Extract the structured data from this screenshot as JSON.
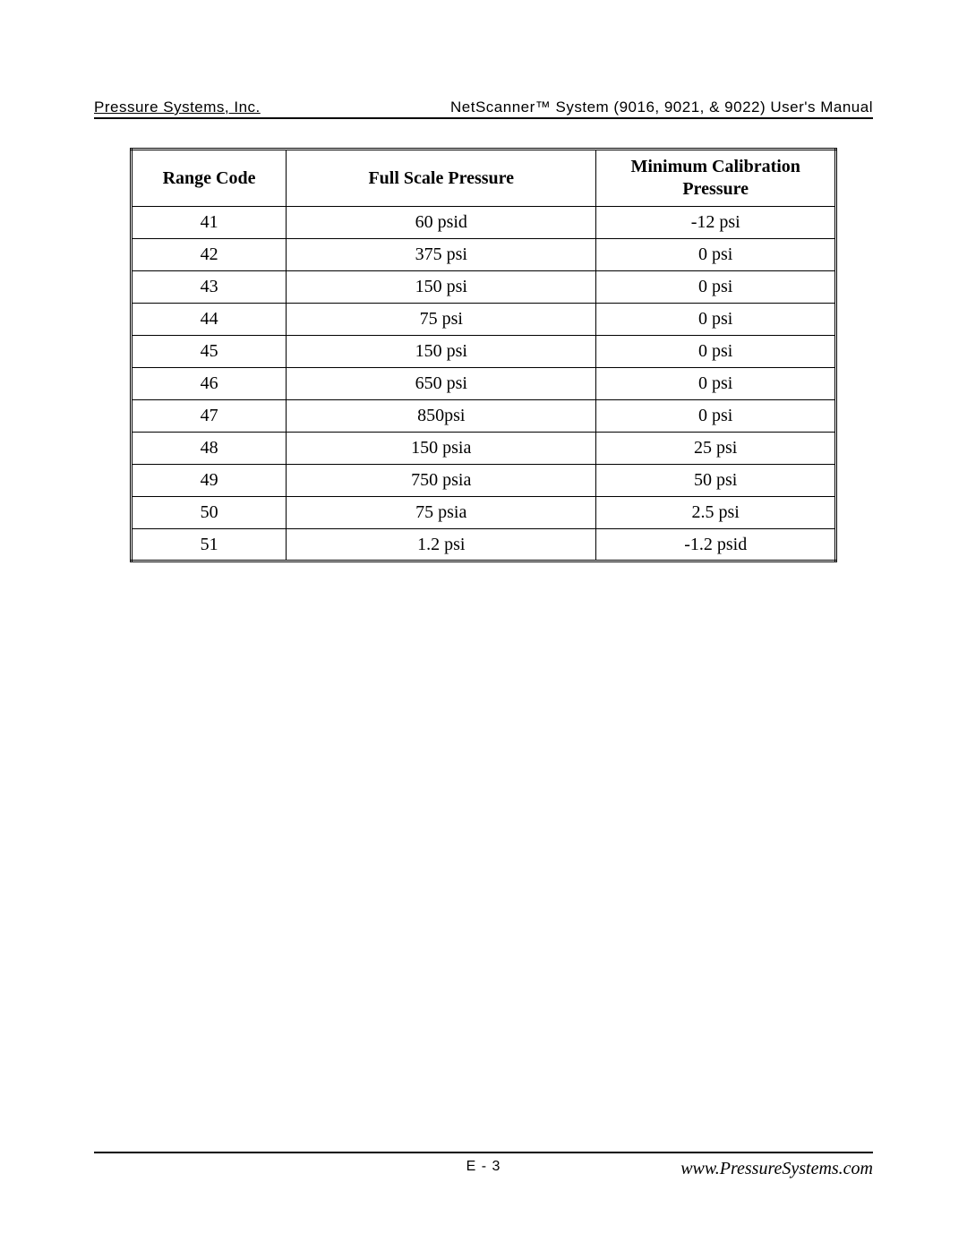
{
  "header": {
    "left": "Pressure Systems, Inc.",
    "right": "NetScanner™ System (9016, 9021, & 9022) User's Manual"
  },
  "table": {
    "columns": [
      "Range Code",
      "Full Scale Pressure",
      "Minimum Calibration Pressure"
    ],
    "col_widths_pct": [
      22,
      44,
      34
    ],
    "header_fontsize_pt": 15,
    "cell_fontsize_pt": 15,
    "border_color": "#000000",
    "background_color": "#ffffff",
    "rows": [
      [
        "41",
        "60 psid",
        "-12 psi"
      ],
      [
        "42",
        "375 psi",
        "0 psi"
      ],
      [
        "43",
        "150 psi",
        "0 psi"
      ],
      [
        "44",
        "75 psi",
        "0 psi"
      ],
      [
        "45",
        "150 psi",
        "0 psi"
      ],
      [
        "46",
        "650 psi",
        "0 psi"
      ],
      [
        "47",
        "850psi",
        "0 psi"
      ],
      [
        "48",
        "150 psia",
        "25 psi"
      ],
      [
        "49",
        "750 psia",
        "50 psi"
      ],
      [
        "50",
        "75 psia",
        "2.5 psi"
      ],
      [
        "51",
        "1.2 psi",
        "-1.2 psid"
      ]
    ]
  },
  "footer": {
    "page_label": "E - 3",
    "site": "www.PressureSystems.com"
  }
}
